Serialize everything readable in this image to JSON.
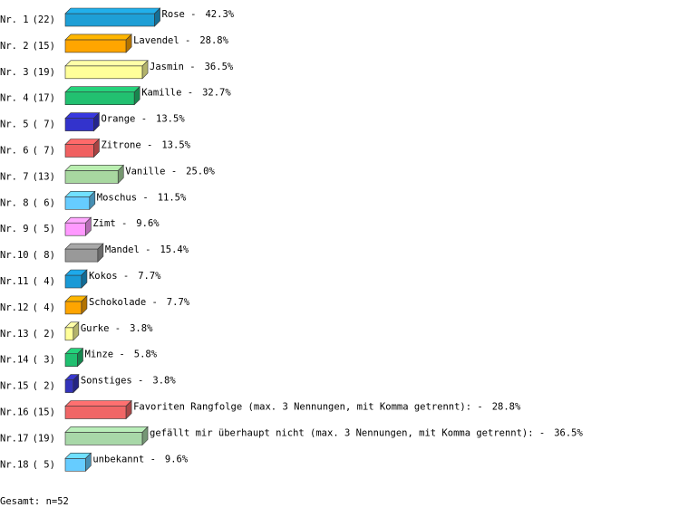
{
  "chart_data": {
    "type": "bar",
    "orientation": "horizontal",
    "ranks": [
      "Nr. 1",
      "Nr. 2",
      "Nr. 3",
      "Nr. 4",
      "Nr. 5",
      "Nr. 6",
      "Nr. 7",
      "Nr. 8",
      "Nr. 9",
      "Nr.10",
      "Nr.11",
      "Nr.12",
      "Nr.13",
      "Nr.14",
      "Nr.15",
      "Nr.16",
      "Nr.17",
      "Nr.18"
    ],
    "counts": [
      22,
      15,
      19,
      17,
      7,
      7,
      13,
      6,
      5,
      8,
      4,
      4,
      2,
      3,
      2,
      15,
      19,
      5
    ],
    "count_labels": [
      "(22)",
      "(15)",
      "(19)",
      "(17)",
      "( 7)",
      "( 7)",
      "(13)",
      "( 6)",
      "( 5)",
      "( 8)",
      "( 4)",
      "( 4)",
      "( 2)",
      "( 3)",
      "( 2)",
      "(15)",
      "(19)",
      "( 5)"
    ],
    "categories": [
      "Rose -",
      "Lavendel -",
      "Jasmin -",
      "Kamille -",
      "Orange -",
      "Zitrone -",
      "Vanille -",
      "Moschus -",
      "Zimt -",
      "Mandel -",
      "Kokos -",
      "Schokolade -",
      "Gurke -",
      "Minze -",
      "Sonstiges -",
      "Favoriten Rangfolge (max. 3 Nennungen, mit Komma getrennt): -",
      "gefällt mir überhaupt nicht (max. 3 Nennungen, mit Komma getrennt): -",
      "unbekannt -"
    ],
    "values": [
      42.3,
      28.8,
      36.5,
      32.7,
      13.5,
      13.5,
      25.0,
      11.5,
      9.6,
      15.4,
      7.7,
      7.7,
      3.8,
      5.8,
      3.8,
      28.8,
      36.5,
      9.6
    ],
    "value_labels": [
      "42.3%",
      "28.8%",
      "36.5%",
      "32.7%",
      "13.5%",
      "13.5%",
      "25.0%",
      "11.5%",
      "9.6%",
      "15.4%",
      "7.7%",
      "7.7%",
      "3.8%",
      "5.8%",
      "3.8%",
      "28.8%",
      "36.5%",
      "9.6%"
    ],
    "colors": [
      "#1e9fd6",
      "#ffa500",
      "#ffff99",
      "#22c070",
      "#3333cc",
      "#f06060",
      "#a8d8a0",
      "#66ccff",
      "#ff99ff",
      "#999999",
      "#1a9ad6",
      "#ffa500",
      "#ffff99",
      "#20c070",
      "#3333bb",
      "#f06666",
      "#a8d8a8",
      "#66ccff"
    ],
    "footer_label": "Gesamt: n=",
    "total": 52
  }
}
